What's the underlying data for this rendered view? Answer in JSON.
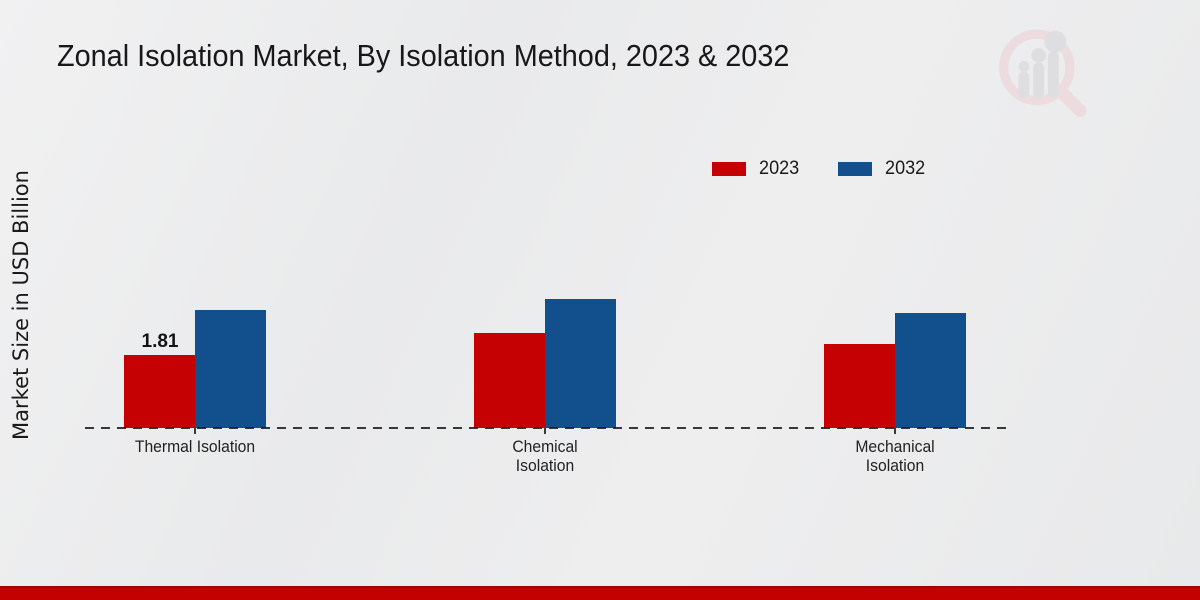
{
  "header": {
    "title": "Zonal Isolation Market, By Isolation Method, 2023 & 2032"
  },
  "axis": {
    "y_label": "Market Size in USD Billion"
  },
  "legend": {
    "items": [
      {
        "label": "2023",
        "color": "#c50103"
      },
      {
        "label": "2032",
        "color": "#11508c"
      }
    ]
  },
  "chart_data": {
    "type": "bar",
    "title": "Zonal Isolation Market, By Isolation Method, 2023 & 2032",
    "categories": [
      "Thermal Isolation",
      "Chemical Isolation",
      "Mechanical Isolation"
    ],
    "series": [
      {
        "name": "2023",
        "color": "#c50103",
        "values": [
          1.81,
          2.36,
          2.08
        ]
      },
      {
        "name": "2032",
        "color": "#11508c",
        "values": [
          2.93,
          3.2,
          2.85
        ]
      }
    ],
    "ylabel": "Market Size in USD Billion",
    "ylim": [
      0,
      3.5
    ],
    "grid": false,
    "legend_position": "top-right",
    "baseline_style": "dashed",
    "annotations": [
      {
        "text": "1.81",
        "series": "2023",
        "category": "Thermal Isolation"
      }
    ]
  },
  "watermark": {
    "name": "magnifier-growth-chart-logo",
    "ring_color": "#eccfd3",
    "bar_color": "#d4d4d7"
  },
  "footer": {
    "accent_color": "#c20100",
    "accent_edge_color": "#a00404"
  }
}
